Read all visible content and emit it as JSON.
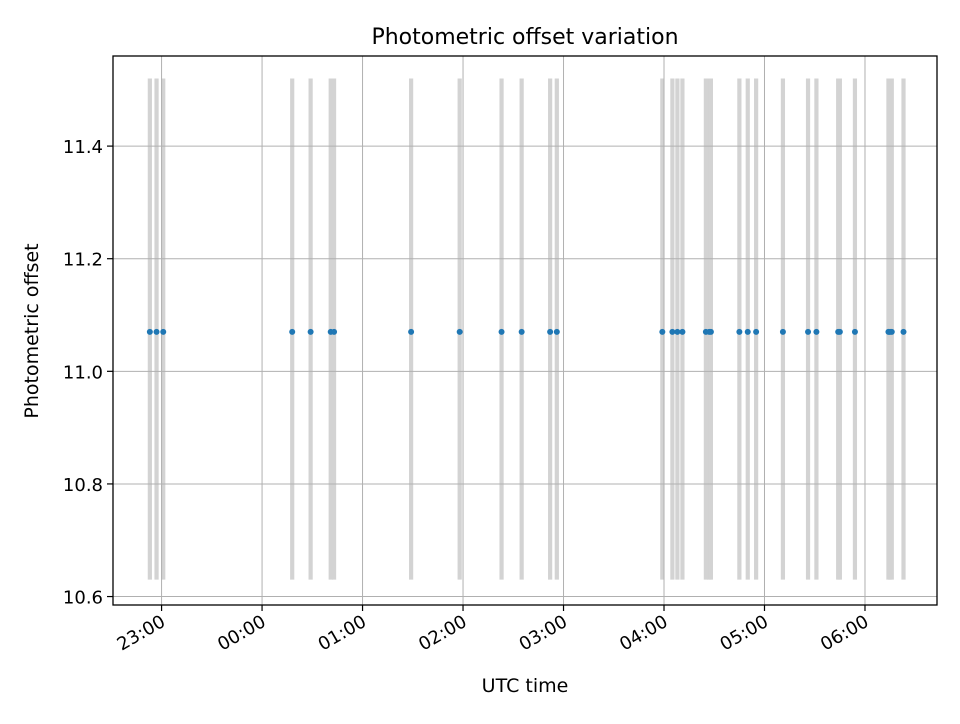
{
  "chart_data": {
    "type": "scatter",
    "title": "Photometric offset variation",
    "xlabel": "UTC time",
    "ylabel": "Photometric offset",
    "x_axis_kind": "time",
    "xlim": [
      "22:31",
      "06:43"
    ],
    "ylim": [
      10.585,
      11.56
    ],
    "x_ticks": [
      "23:00",
      "00:00",
      "01:00",
      "02:00",
      "03:00",
      "04:00",
      "05:00",
      "06:00"
    ],
    "y_ticks": [
      "10.6",
      "10.8",
      "11.0",
      "11.2",
      "11.4"
    ],
    "grid": true,
    "band_range": [
      10.63,
      11.52
    ],
    "series": [
      {
        "marker": "dot",
        "color": "#1f77b4",
        "x": [
          "22:53",
          "22:57",
          "23:01",
          "00:18",
          "00:29",
          "00:41",
          "00:43",
          "01:29",
          "01:58",
          "02:23",
          "02:35",
          "02:52",
          "02:56",
          "03:59",
          "04:05",
          "04:08",
          "04:11",
          "04:25",
          "04:27",
          "04:28",
          "04:45",
          "04:50",
          "04:55",
          "05:11",
          "05:26",
          "05:31",
          "05:44",
          "05:45",
          "05:54",
          "06:14",
          "06:15",
          "06:16",
          "06:23"
        ],
        "y": [
          11.07,
          11.07,
          11.07,
          11.07,
          11.07,
          11.07,
          11.07,
          11.07,
          11.07,
          11.07,
          11.07,
          11.07,
          11.07,
          11.07,
          11.07,
          11.07,
          11.07,
          11.07,
          11.07,
          11.07,
          11.07,
          11.07,
          11.07,
          11.07,
          11.07,
          11.07,
          11.07,
          11.07,
          11.07,
          11.07,
          11.07,
          11.07,
          11.07
        ]
      }
    ],
    "band_color": "#d3d3d3",
    "grid_color": "#b0b0b0"
  }
}
